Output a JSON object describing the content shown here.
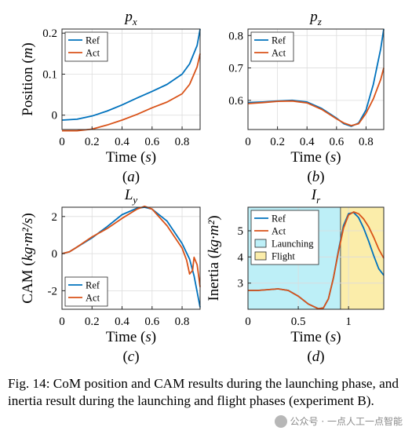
{
  "caption": "Fig. 14: CoM position and CAM results during the launching phase, and inertia result during the launching and flight phases (experiment B).",
  "watermark": "公众号 · 一点人工一点智能",
  "colors": {
    "ref": "#0072BD",
    "act": "#D95319",
    "launching": "#BDEFF7",
    "flight": "#FBEDAA",
    "boundary": "#555555"
  },
  "chart_data": [
    {
      "id": "a",
      "type": "line",
      "title": "p_x",
      "xlabel": "Time (s)",
      "ylabel": "Position (m)",
      "sublabel": "(a)",
      "xlim": [
        0,
        0.92
      ],
      "ylim": [
        -0.035,
        0.21
      ],
      "xticks": [
        0,
        0.2,
        0.4,
        0.6,
        0.8
      ],
      "xtick_labels": [
        "0",
        "0.2",
        "0.4",
        "0.6",
        "0.8"
      ],
      "yticks": [
        0,
        0.1,
        0.2
      ],
      "ytick_labels": [
        "0",
        "0.1",
        "0.2"
      ],
      "legend": {
        "position": "top-left"
      },
      "series": [
        {
          "name": "Ref",
          "x": [
            0,
            0.1,
            0.2,
            0.3,
            0.4,
            0.5,
            0.6,
            0.7,
            0.8,
            0.85,
            0.9,
            0.92
          ],
          "values": [
            -0.012,
            -0.01,
            -0.002,
            0.01,
            0.025,
            0.042,
            0.058,
            0.075,
            0.1,
            0.125,
            0.17,
            0.21
          ]
        },
        {
          "name": "Act",
          "x": [
            0,
            0.1,
            0.2,
            0.3,
            0.4,
            0.5,
            0.6,
            0.7,
            0.8,
            0.85,
            0.9,
            0.92
          ],
          "values": [
            -0.038,
            -0.038,
            -0.034,
            -0.024,
            -0.012,
            0.002,
            0.018,
            0.032,
            0.052,
            0.075,
            0.118,
            0.15
          ]
        }
      ]
    },
    {
      "id": "b",
      "type": "line",
      "title": "p_z",
      "xlabel": "Time (s)",
      "ylabel": "",
      "sublabel": "(b)",
      "xlim": [
        0,
        0.92
      ],
      "ylim": [
        0.51,
        0.82
      ],
      "xticks": [
        0,
        0.2,
        0.4,
        0.6,
        0.8
      ],
      "xtick_labels": [
        "0",
        "0.2",
        "0.4",
        "0.6",
        "0.8"
      ],
      "yticks": [
        0.6,
        0.7,
        0.8
      ],
      "ytick_labels": [
        "0.6",
        "0.7",
        "0.8"
      ],
      "legend": {
        "position": "top-left"
      },
      "series": [
        {
          "name": "Ref",
          "x": [
            0,
            0.1,
            0.2,
            0.3,
            0.4,
            0.5,
            0.6,
            0.65,
            0.7,
            0.75,
            0.8,
            0.85,
            0.9,
            0.92
          ],
          "values": [
            0.593,
            0.595,
            0.598,
            0.6,
            0.595,
            0.575,
            0.545,
            0.528,
            0.52,
            0.53,
            0.57,
            0.65,
            0.76,
            0.82
          ]
        },
        {
          "name": "Act",
          "x": [
            0,
            0.1,
            0.2,
            0.3,
            0.4,
            0.5,
            0.6,
            0.65,
            0.7,
            0.75,
            0.8,
            0.85,
            0.9,
            0.92
          ],
          "values": [
            0.59,
            0.593,
            0.597,
            0.598,
            0.592,
            0.572,
            0.543,
            0.53,
            0.522,
            0.528,
            0.56,
            0.605,
            0.665,
            0.7
          ]
        }
      ]
    },
    {
      "id": "c",
      "type": "line",
      "title": "L_y",
      "xlabel": "Time (s)",
      "ylabel": "CAM (kg·m²/s)",
      "sublabel": "(c)",
      "xlim": [
        0,
        0.92
      ],
      "ylim": [
        -3,
        2.5
      ],
      "xticks": [
        0,
        0.2,
        0.4,
        0.6,
        0.8
      ],
      "xtick_labels": [
        "0",
        "0.2",
        "0.4",
        "0.6",
        "0.8"
      ],
      "yticks": [
        -2,
        0,
        2
      ],
      "ytick_labels": [
        "-2",
        "0",
        "2"
      ],
      "legend": {
        "position": "bottom-left"
      },
      "series": [
        {
          "name": "Ref",
          "x": [
            0,
            0.05,
            0.1,
            0.2,
            0.3,
            0.4,
            0.5,
            0.55,
            0.6,
            0.7,
            0.8,
            0.85,
            0.88,
            0.92
          ],
          "values": [
            0,
            0.1,
            0.35,
            0.85,
            1.45,
            2.1,
            2.45,
            2.5,
            2.4,
            1.75,
            0.55,
            -0.3,
            -1.2,
            -2.9
          ]
        },
        {
          "name": "Act",
          "x": [
            0,
            0.05,
            0.1,
            0.2,
            0.3,
            0.4,
            0.5,
            0.55,
            0.6,
            0.7,
            0.8,
            0.83,
            0.85,
            0.87,
            0.88,
            0.9,
            0.92
          ],
          "values": [
            0,
            0.1,
            0.35,
            0.9,
            1.35,
            1.9,
            2.4,
            2.55,
            2.4,
            1.5,
            0.3,
            -0.35,
            -1.1,
            -0.9,
            -0.2,
            -0.6,
            -1.8
          ]
        }
      ]
    },
    {
      "id": "d",
      "type": "line",
      "title": "I_r",
      "xlabel": "Time (s)",
      "ylabel": "Inertia (kg·m²)",
      "sublabel": "(d)",
      "xlim": [
        0,
        1.35
      ],
      "ylim": [
        2.0,
        5.9
      ],
      "xticks": [
        0,
        0.5,
        1
      ],
      "xtick_labels": [
        "0",
        "0.5",
        "1"
      ],
      "yticks": [
        3,
        4,
        5
      ],
      "ytick_labels": [
        "3",
        "4",
        "5"
      ],
      "legend": {
        "position": "top-left"
      },
      "phases": [
        {
          "name": "Launching",
          "start": 0,
          "end": 0.92,
          "color": "#BDEFF7"
        },
        {
          "name": "Flight",
          "start": 0.92,
          "end": 1.35,
          "color": "#FBEDAA"
        }
      ],
      "series": [
        {
          "name": "Ref",
          "x": [
            0,
            0.1,
            0.2,
            0.3,
            0.4,
            0.5,
            0.6,
            0.7,
            0.75,
            0.8,
            0.85,
            0.9,
            0.95,
            1.0,
            1.05,
            1.1,
            1.15,
            1.2,
            1.25,
            1.3,
            1.35
          ],
          "values": [
            2.72,
            2.72,
            2.75,
            2.78,
            2.72,
            2.5,
            2.2,
            2.02,
            2.05,
            2.4,
            3.2,
            4.25,
            5.2,
            5.65,
            5.7,
            5.5,
            5.1,
            4.6,
            4.05,
            3.55,
            3.3
          ]
        },
        {
          "name": "Act",
          "x": [
            0,
            0.1,
            0.2,
            0.3,
            0.4,
            0.5,
            0.6,
            0.7,
            0.75,
            0.8,
            0.85,
            0.9,
            0.95,
            1.0,
            1.05,
            1.1,
            1.15,
            1.2,
            1.25,
            1.3,
            1.35
          ],
          "values": [
            2.72,
            2.72,
            2.75,
            2.78,
            2.72,
            2.5,
            2.2,
            2.02,
            2.05,
            2.4,
            3.2,
            4.2,
            5.1,
            5.6,
            5.72,
            5.65,
            5.45,
            5.15,
            4.75,
            4.3,
            3.95
          ]
        }
      ]
    }
  ]
}
